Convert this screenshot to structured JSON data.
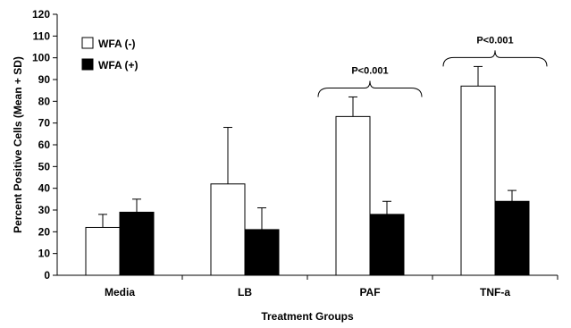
{
  "chart_data": {
    "type": "bar",
    "title": "",
    "xlabel": "Treatment Groups",
    "ylabel": "Percent Positive Cells (Mean + SD)",
    "ylim": [
      0,
      120
    ],
    "yticks": [
      0,
      10,
      20,
      30,
      40,
      50,
      60,
      70,
      80,
      90,
      100,
      110,
      120
    ],
    "categories": [
      "Media",
      "LB",
      "PAF",
      "TNF-a"
    ],
    "series": [
      {
        "name": "WFA (-)",
        "color": "#ffffff",
        "values": [
          22,
          42,
          73,
          87
        ],
        "sd": [
          6,
          26,
          9,
          9
        ]
      },
      {
        "name": "WFA (+)",
        "color": "#000000",
        "values": [
          29,
          21,
          28,
          34
        ],
        "sd": [
          6,
          10,
          6,
          5
        ]
      }
    ],
    "legend_position": "top-left",
    "grid": false,
    "annotations": [
      {
        "category": "PAF",
        "text": "P<0.001"
      },
      {
        "category": "TNF-a",
        "text": "P<0.001"
      }
    ]
  }
}
